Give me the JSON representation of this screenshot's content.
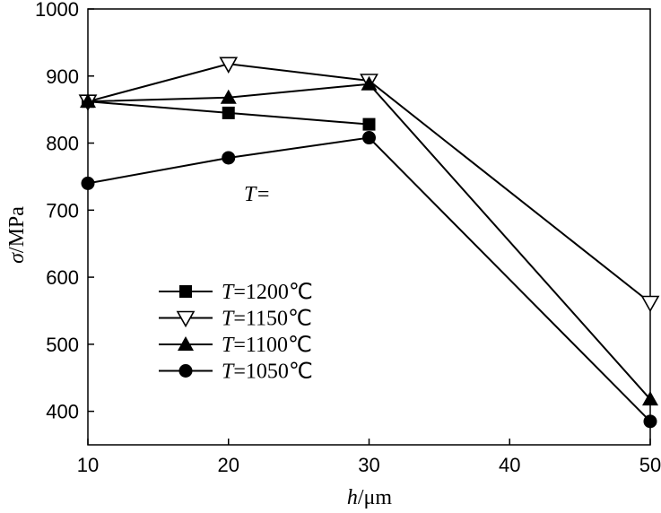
{
  "chart_data": {
    "type": "line",
    "x": [
      10,
      20,
      30,
      50
    ],
    "xlabel_var": "h",
    "xlabel_unit": "/μm",
    "ylabel_var": "σ",
    "ylabel_unit": "/MPa",
    "xlim": [
      10,
      50
    ],
    "ylim": [
      350,
      1000
    ],
    "xticks": [
      10,
      20,
      30,
      40,
      50
    ],
    "yticks": [
      400,
      500,
      600,
      700,
      800,
      900,
      1000
    ],
    "grid": false,
    "legend_position": "lower-left",
    "annotation": "T=",
    "series": [
      {
        "name": "T=1200℃",
        "var": "T",
        "rest": "=1200℃",
        "marker": "square-filled",
        "x": [
          10,
          20,
          30
        ],
        "values": [
          862,
          845,
          828
        ]
      },
      {
        "name": "T=1150℃",
        "var": "T",
        "rest": "=1150℃",
        "marker": "triangle-down-open",
        "x": [
          10,
          20,
          30,
          50
        ],
        "values": [
          862,
          918,
          893,
          562
        ]
      },
      {
        "name": "T=1100℃",
        "var": "T",
        "rest": "=1100℃",
        "marker": "triangle-up-filled",
        "x": [
          10,
          20,
          30,
          50
        ],
        "values": [
          862,
          868,
          888,
          418
        ]
      },
      {
        "name": "T=1050℃",
        "var": "T",
        "rest": "=1050℃",
        "marker": "circle-filled",
        "x": [
          10,
          20,
          30,
          50
        ],
        "values": [
          740,
          778,
          808,
          385
        ]
      }
    ]
  }
}
